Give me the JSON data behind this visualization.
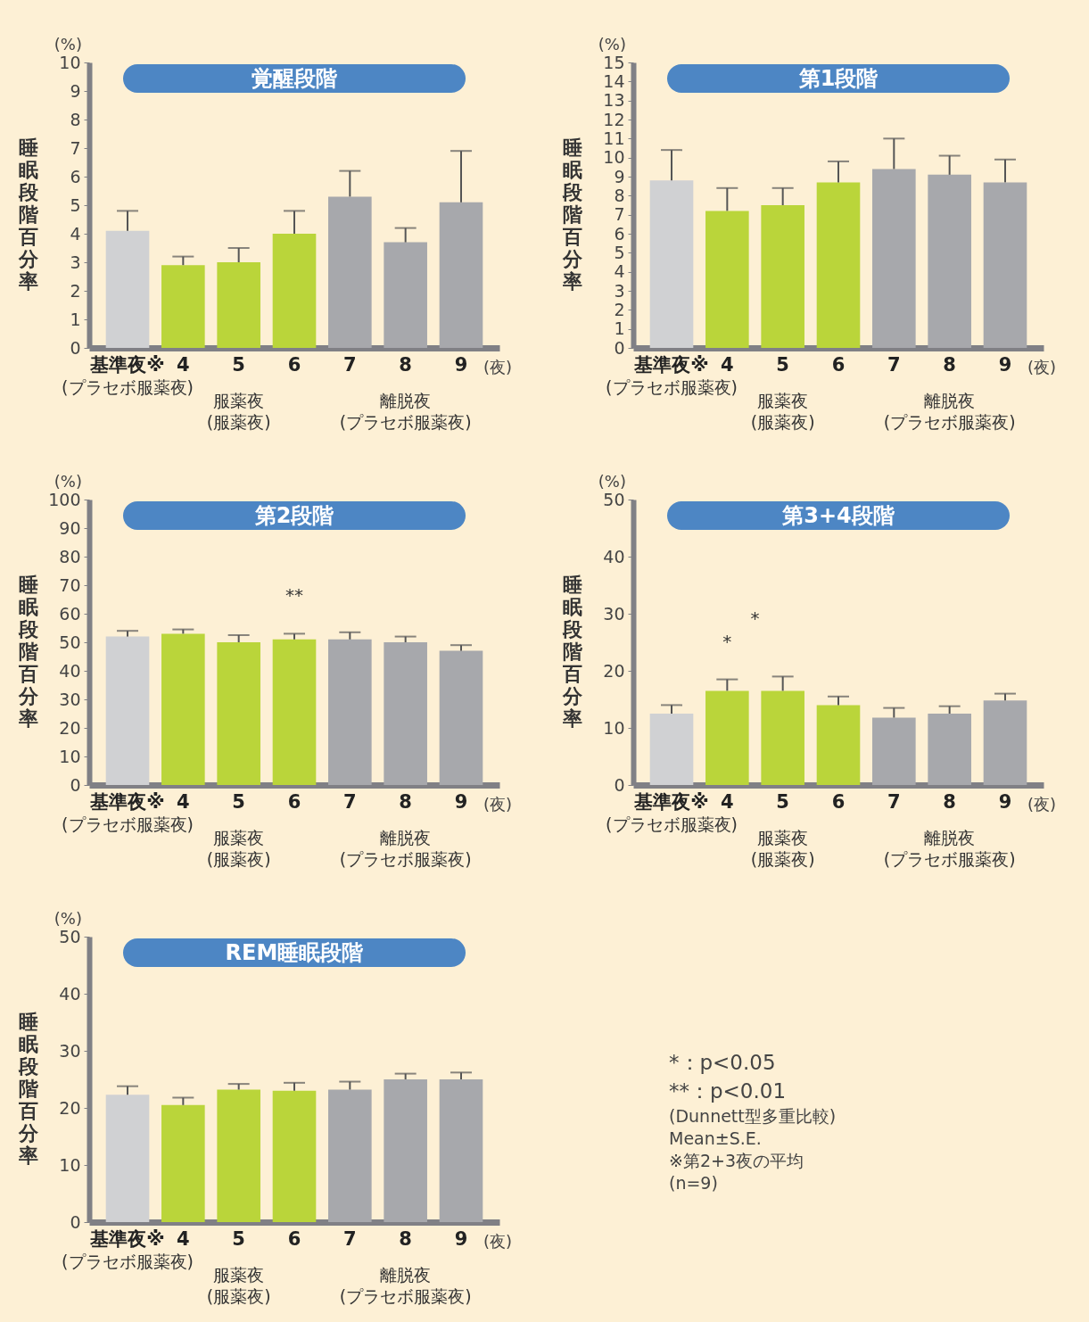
{
  "chart_data": [
    {
      "type": "bar",
      "title": "覚醒段階",
      "ylabel": "睡眠段階百分率",
      "xlabel": "(夜)",
      "categories": [
        "基準夜※",
        "4",
        "5",
        "6",
        "7",
        "8",
        "9"
      ],
      "values": [
        4.1,
        2.9,
        3.0,
        4.0,
        5.3,
        3.7,
        5.1
      ],
      "errors": [
        0.7,
        0.3,
        0.5,
        0.8,
        0.9,
        0.5,
        1.8
      ],
      "colors": [
        "#d0d1d3",
        "#bad53a",
        "#bad53a",
        "#bad53a",
        "#a7a8ac",
        "#a7a8ac",
        "#a7a8ac"
      ],
      "ylim": [
        0,
        10
      ],
      "yticks": [
        0,
        1,
        2,
        3,
        4,
        5,
        6,
        7,
        8,
        9,
        10
      ],
      "annotations": [
        "(%)",
        "(プラセボ服薬夜)",
        "服薬夜",
        "(服薬夜)",
        "離脱夜",
        "(プラセボ服薬夜)"
      ]
    },
    {
      "type": "bar",
      "title": "第1段階",
      "ylabel": "睡眠段階百分率",
      "xlabel": "(夜)",
      "categories": [
        "基準夜※",
        "4",
        "5",
        "6",
        "7",
        "8",
        "9"
      ],
      "values": [
        8.8,
        7.2,
        7.5,
        8.7,
        9.4,
        9.1,
        8.7
      ],
      "errors": [
        1.6,
        1.2,
        0.9,
        1.1,
        1.6,
        1.0,
        1.2
      ],
      "colors": [
        "#d0d1d3",
        "#bad53a",
        "#bad53a",
        "#bad53a",
        "#a7a8ac",
        "#a7a8ac",
        "#a7a8ac"
      ],
      "ylim": [
        0,
        15
      ],
      "yticks": [
        0,
        1,
        2,
        3,
        4,
        5,
        6,
        7,
        8,
        9,
        10,
        11,
        12,
        13,
        14,
        15
      ],
      "annotations": [
        "(%)",
        "(プラセボ服薬夜)",
        "服薬夜",
        "(服薬夜)",
        "離脱夜",
        "(プラセボ服薬夜)"
      ]
    },
    {
      "type": "bar",
      "title": "第2段階",
      "ylabel": "睡眠段階百分率",
      "xlabel": "(夜)",
      "categories": [
        "基準夜※",
        "4",
        "5",
        "6",
        "7",
        "8",
        "9"
      ],
      "values": [
        52,
        53,
        50,
        51,
        51,
        50,
        47
      ],
      "errors": [
        2,
        1.5,
        2.5,
        2,
        2.5,
        2,
        2
      ],
      "colors": [
        "#d0d1d3",
        "#bad53a",
        "#bad53a",
        "#bad53a",
        "#a7a8ac",
        "#a7a8ac",
        "#a7a8ac"
      ],
      "ylim": [
        0,
        100
      ],
      "yticks": [
        0,
        10,
        20,
        30,
        40,
        50,
        60,
        70,
        80,
        90,
        100
      ],
      "annotations": [
        "(%)",
        "(プラセボ服薬夜)",
        "服薬夜",
        "(服薬夜)",
        "離脱夜",
        "(プラセボ服薬夜)",
        "**"
      ]
    },
    {
      "type": "bar",
      "title": "第3+4段階",
      "ylabel": "睡眠段階百分率",
      "xlabel": "(夜)",
      "categories": [
        "基準夜※",
        "4",
        "5",
        "6",
        "7",
        "8",
        "9"
      ],
      "values": [
        12.5,
        16.5,
        16.5,
        14,
        11.8,
        12.5,
        14.8
      ],
      "errors": [
        1.5,
        2,
        2.5,
        1.5,
        1.7,
        1.3,
        1.2
      ],
      "colors": [
        "#d0d1d3",
        "#bad53a",
        "#bad53a",
        "#bad53a",
        "#a7a8ac",
        "#a7a8ac",
        "#a7a8ac"
      ],
      "ylim": [
        0,
        50
      ],
      "yticks": [
        0,
        10,
        20,
        30,
        40,
        50
      ],
      "annotations": [
        "(%)",
        "(プラセボ服薬夜)",
        "服薬夜",
        "(服薬夜)",
        "離脱夜",
        "(プラセボ服薬夜)",
        "*",
        "*"
      ]
    },
    {
      "type": "bar",
      "title": "REM睡眠段階",
      "ylabel": "睡眠段階百分率",
      "xlabel": "(夜)",
      "categories": [
        "基準夜※",
        "4",
        "5",
        "6",
        "7",
        "8",
        "9"
      ],
      "values": [
        22.3,
        20.5,
        23.2,
        23,
        23.2,
        25,
        25
      ],
      "errors": [
        1.5,
        1.3,
        1,
        1.4,
        1.4,
        1,
        1.2
      ],
      "colors": [
        "#d0d1d3",
        "#bad53a",
        "#bad53a",
        "#bad53a",
        "#a7a8ac",
        "#a7a8ac",
        "#a7a8ac"
      ],
      "ylim": [
        0,
        50
      ],
      "yticks": [
        0,
        10,
        20,
        30,
        40,
        50
      ],
      "annotations": [
        "(%)",
        "(プラセボ服薬夜)",
        "服薬夜",
        "(服薬夜)",
        "離脱夜",
        "(プラセボ服薬夜)",
        "*：p<0.05",
        "**：p<0.01",
        "(Dunnett型多重比較)",
        "Mean±S.E.",
        "※第2+3夜の平均",
        "(n=9)"
      ]
    }
  ]
}
